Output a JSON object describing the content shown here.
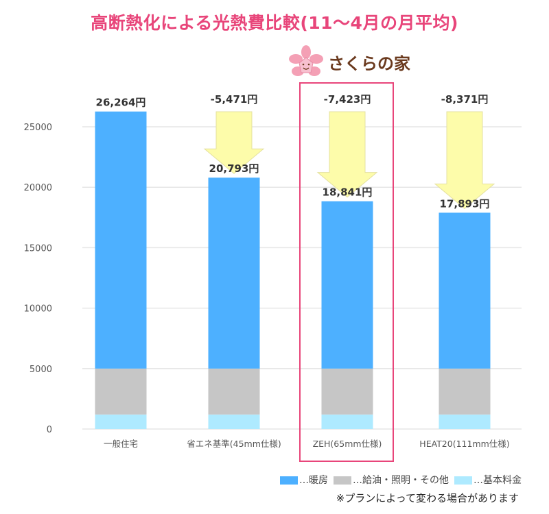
{
  "title": "高断熱化による光熱費比較(11～4月の月平均)",
  "logo": {
    "text": "さくらの家"
  },
  "note": "※プランによって変わる場合があります",
  "colors": {
    "heating": "#4db0ff",
    "other": "#c6c6c6",
    "base": "#aeeaff",
    "arrow": "#fdfcaa",
    "highlight": "#e8457a",
    "title": "#e8457a"
  },
  "chart_data": {
    "type": "bar",
    "stacked": true,
    "categories": [
      "一般住宅",
      "省エネ基準(45mm仕様)",
      "ZEH(65mm仕様)",
      "HEAT20(111mm仕様)"
    ],
    "series": [
      {
        "name": "基本料金",
        "values": [
          1200,
          1200,
          1200,
          1200
        ]
      },
      {
        "name": "給油・照明・その他",
        "values": [
          3800,
          3800,
          3800,
          3800
        ]
      },
      {
        "name": "暖房",
        "values": [
          21264,
          15793,
          13841,
          12893
        ]
      }
    ],
    "legend_prefix": "…",
    "total_labels": [
      "26,264円",
      "20,793円",
      "18,841円",
      "17,893円"
    ],
    "totals": [
      26264,
      20793,
      18841,
      17893
    ],
    "difference_labels": [
      "",
      "-5,471円",
      "-7,423円",
      "-8,371円"
    ],
    "highlighted_category": "ZEH(65mm仕様)",
    "yticks": [
      0,
      5000,
      10000,
      15000,
      20000,
      25000
    ],
    "ylim": [
      0,
      25000
    ],
    "grid": true,
    "legend_position": "bottom-right"
  }
}
